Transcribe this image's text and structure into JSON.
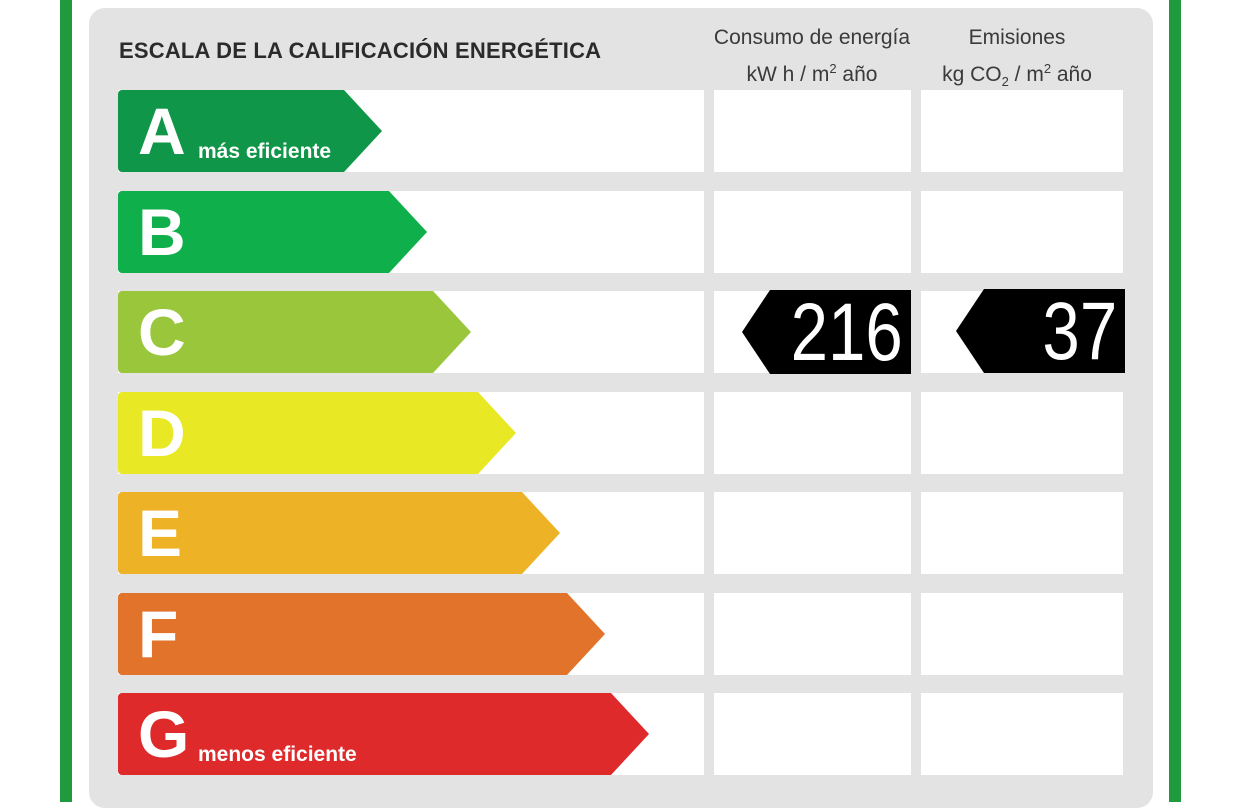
{
  "title": "ESCALA DE LA CALIFICACIÓN ENERGÉTICA",
  "columns": {
    "consumo": {
      "line1": "Consumo de energía",
      "unit_a": "kW h  / m",
      "unit_sup": "2",
      "unit_b": " año"
    },
    "emisiones": {
      "line1": "Emisiones",
      "unit_a": "kg CO",
      "unit_sub": "2",
      "unit_b": "  / m",
      "unit_sup": "2",
      "unit_c": " año"
    }
  },
  "ratings": [
    {
      "letter": "A",
      "label": "más eficiente",
      "color": "#0f9648"
    },
    {
      "letter": "B",
      "label": "",
      "color": "#0fb04b"
    },
    {
      "letter": "C",
      "label": "",
      "color": "#9ac63c"
    },
    {
      "letter": "D",
      "label": "",
      "color": "#e9e824"
    },
    {
      "letter": "E",
      "label": "",
      "color": "#eeb227"
    },
    {
      "letter": "F",
      "label": "",
      "color": "#e1742a"
    },
    {
      "letter": "G",
      "label": "menos eficiente",
      "color": "#de2a2a"
    }
  ],
  "result": {
    "class": "C",
    "consumo": "216",
    "emisiones": "37"
  },
  "colors": {
    "frame": "#1f9a3c",
    "panel": "#e3e3e3",
    "tag": "#000000"
  }
}
